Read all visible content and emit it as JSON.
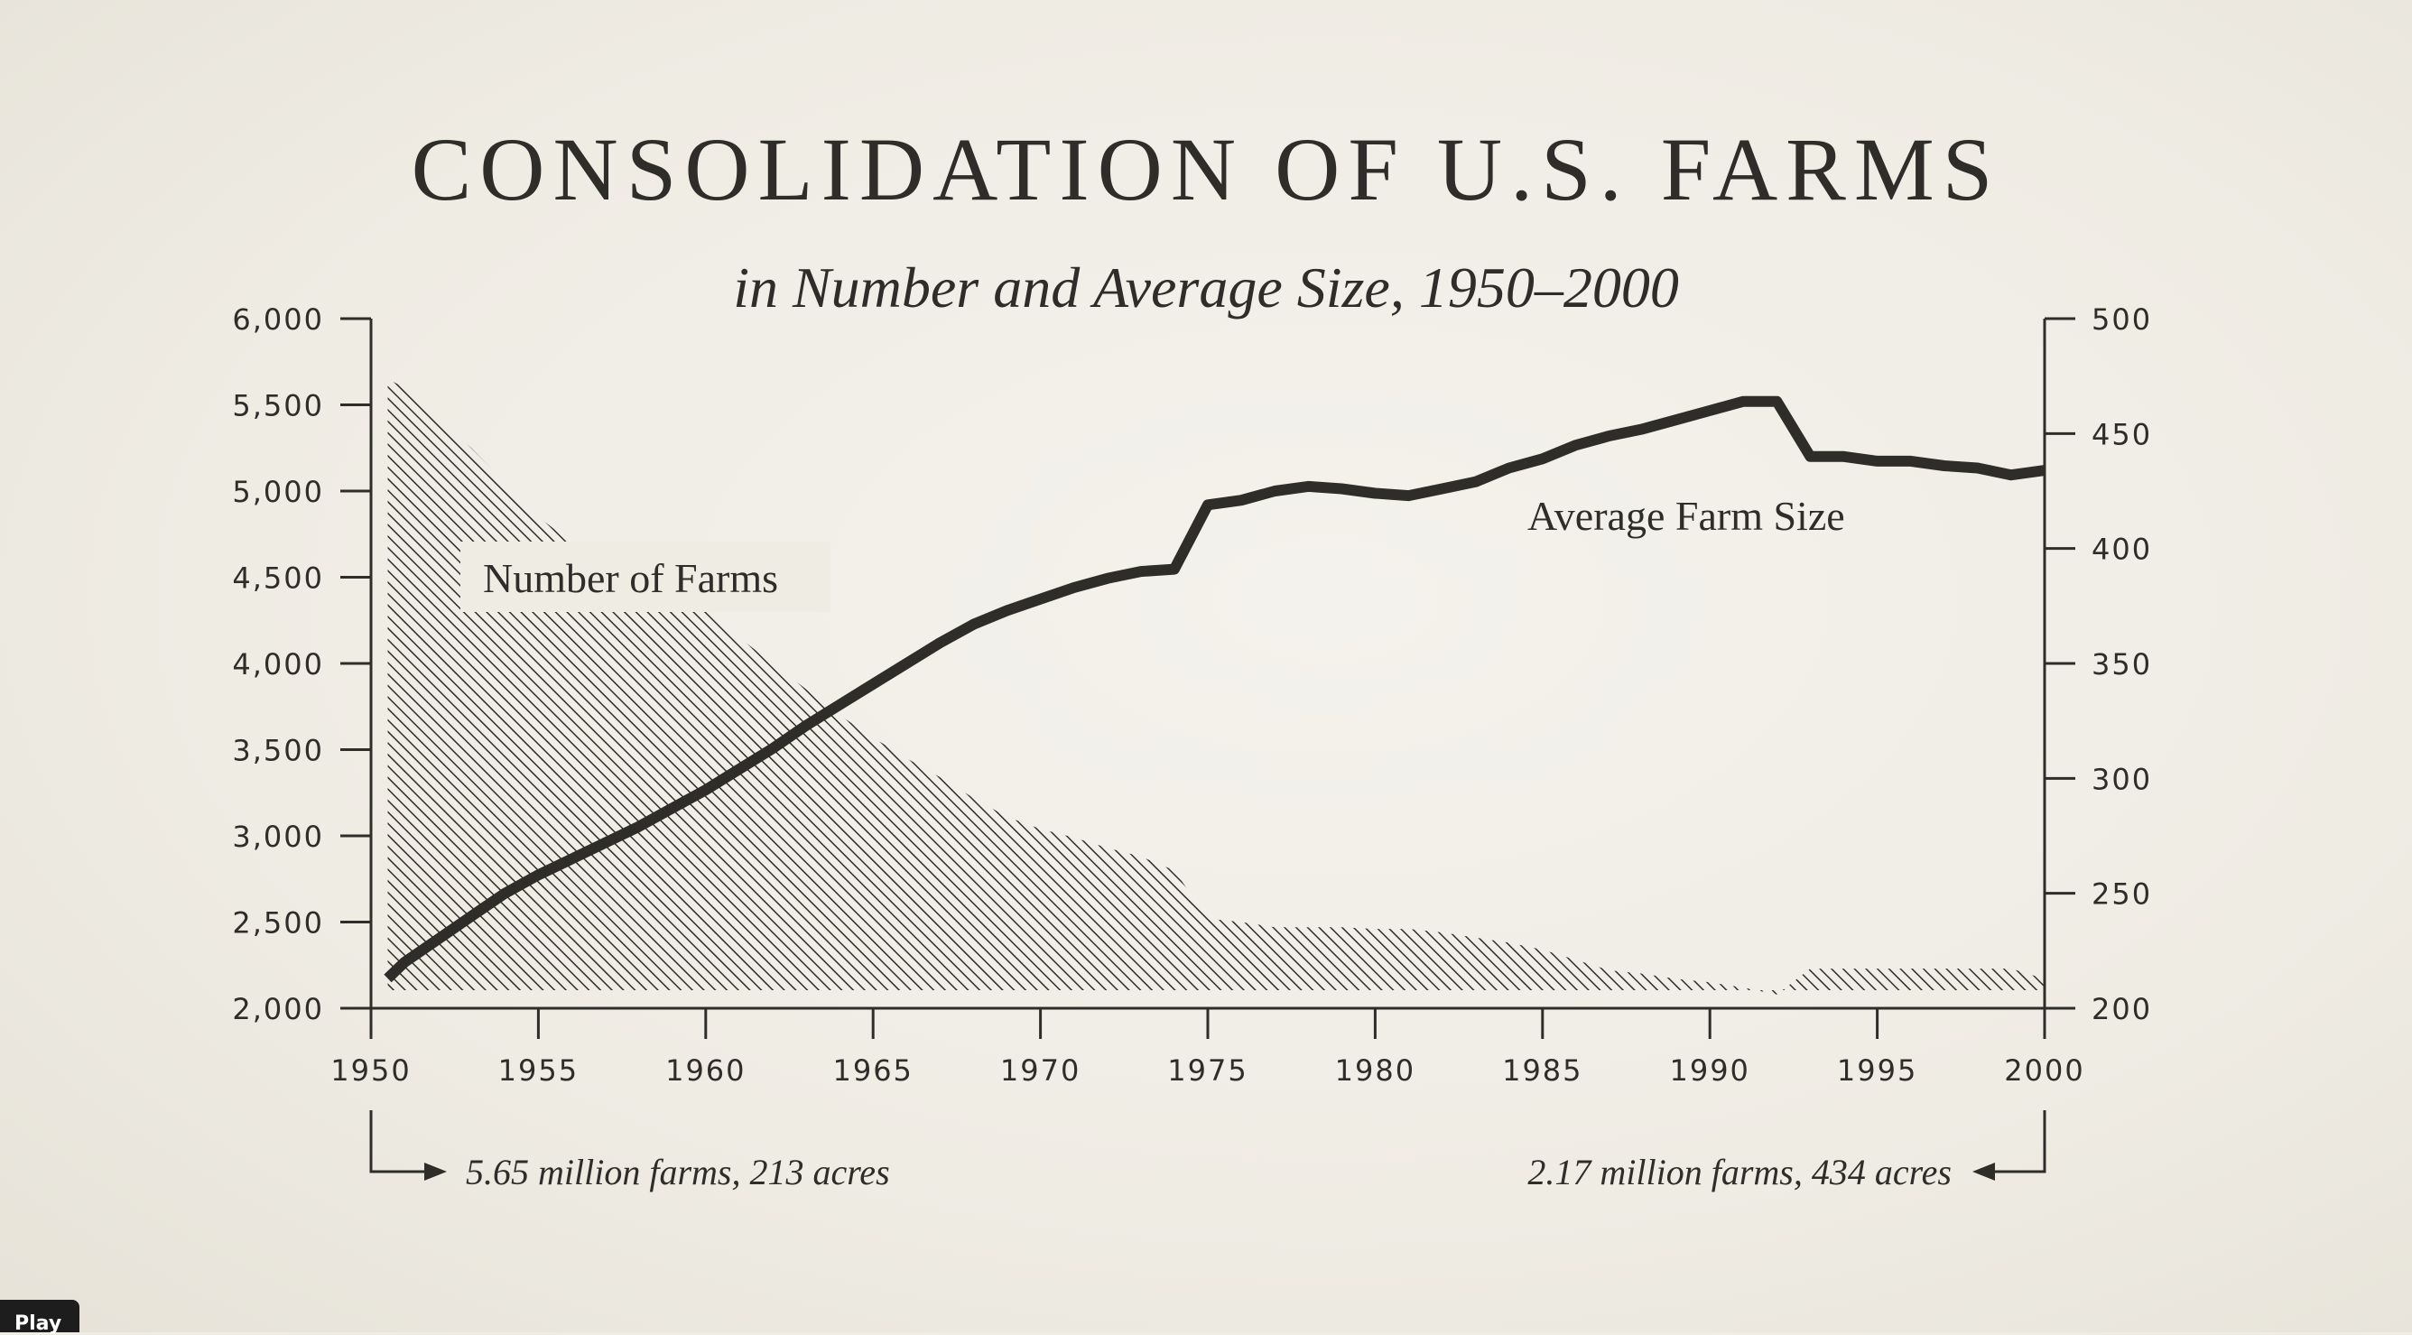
{
  "page": {
    "title": "CONSOLIDATION OF U.S. FARMS",
    "subtitle": "in Number and Average Size, 1950–2000",
    "play_label": "Play"
  },
  "chart_data": {
    "type": "area+line",
    "title": "CONSOLIDATION OF U.S. FARMS",
    "subtitle": "in Number and Average Size, 1950–2000",
    "x_ticks": [
      1950,
      1955,
      1960,
      1965,
      1970,
      1975,
      1980,
      1985,
      1990,
      1995,
      2000
    ],
    "xlim": [
      1950,
      2000
    ],
    "y_left": {
      "ylim": [
        2000,
        6000
      ],
      "ticks": [
        "2,000",
        "2,500",
        "3,000",
        "3,500",
        "4,000",
        "4,500",
        "5,000",
        "5,500",
        "6,000"
      ]
    },
    "y_right": {
      "ylim": [
        200,
        500
      ],
      "ticks": [
        "200",
        "250",
        "300",
        "350",
        "400",
        "450",
        "500"
      ]
    },
    "grid": false,
    "colors": {
      "ink": "#2f2d29",
      "background": "#efece4"
    },
    "series": [
      {
        "name": "Number of Farms",
        "type": "area",
        "axis": "left",
        "x": [
          1950.5,
          1951,
          1952,
          1953,
          1954,
          1955,
          1956,
          1957,
          1958,
          1959,
          1960,
          1961,
          1962,
          1963,
          1964,
          1965,
          1966,
          1967,
          1968,
          1969,
          1970,
          1971,
          1972,
          1973,
          1974,
          1975,
          1976,
          1977,
          1978,
          1979,
          1980,
          1981,
          1982,
          1983,
          1984,
          1985,
          1986,
          1987,
          1988,
          1989,
          1990,
          1991,
          1992,
          1993,
          1994,
          1995,
          1996,
          1997,
          1998,
          1999,
          2000
        ],
        "values": [
          5650,
          5600,
          5420,
          5250,
          5050,
          4850,
          4700,
          4600,
          4500,
          4400,
          4300,
          4150,
          4000,
          3850,
          3700,
          3570,
          3450,
          3340,
          3220,
          3110,
          3040,
          2990,
          2930,
          2880,
          2800,
          2520,
          2500,
          2470,
          2470,
          2470,
          2460,
          2460,
          2440,
          2410,
          2380,
          2340,
          2280,
          2220,
          2200,
          2170,
          2150,
          2120,
          2080,
          2230,
          2230,
          2230,
          2230,
          2230,
          2230,
          2230,
          2170
        ]
      },
      {
        "name": "Average Farm Size",
        "type": "line",
        "axis": "right",
        "x": [
          1950.5,
          1951,
          1952,
          1953,
          1954,
          1955,
          1956,
          1957,
          1958,
          1959,
          1960,
          1961,
          1962,
          1963,
          1964,
          1965,
          1966,
          1967,
          1968,
          1969,
          1970,
          1971,
          1972,
          1973,
          1974,
          1975,
          1976,
          1977,
          1978,
          1979,
          1980,
          1981,
          1982,
          1983,
          1984,
          1985,
          1986,
          1987,
          1988,
          1989,
          1990,
          1991,
          1992,
          1993,
          1994,
          1995,
          1996,
          1997,
          1998,
          1999,
          2000
        ],
        "values": [
          213,
          220,
          230,
          240,
          250,
          258,
          265,
          272,
          279,
          287,
          295,
          304,
          313,
          323,
          332,
          341,
          350,
          359,
          367,
          373,
          378,
          383,
          387,
          390,
          391,
          419,
          421,
          425,
          427,
          426,
          424,
          423,
          426,
          429,
          435,
          439,
          445,
          449,
          452,
          456,
          460,
          464,
          464,
          440,
          440,
          438,
          438,
          436,
          435,
          432,
          434
        ]
      }
    ],
    "annotations": [
      {
        "text": "5.65 million farms, 213 acres",
        "anchor": "bottom-left"
      },
      {
        "text": "2.17 million farms, 434 acres",
        "anchor": "bottom-right"
      }
    ]
  }
}
